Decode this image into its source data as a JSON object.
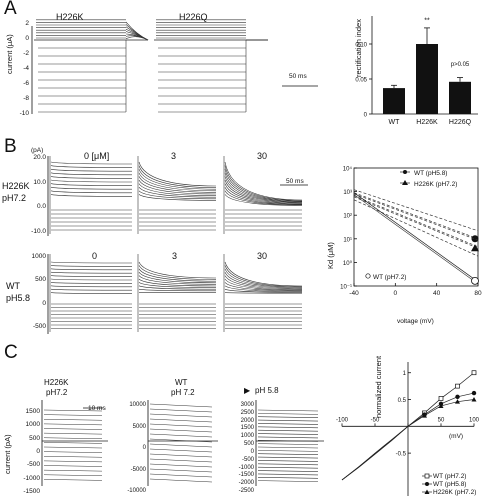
{
  "panel_a": {
    "letter": "A",
    "trace_titles": [
      "H226K",
      "H226Q"
    ],
    "yaxis_label": "current (μA)",
    "yticks": [
      "2",
      "0",
      "-2",
      "-4",
      "-6",
      "-8",
      "-10"
    ],
    "scalebar": "50 ms",
    "bar_chart": {
      "ylabel": "rectification index",
      "yticks": [
        "0.10",
        "0.05",
        "0"
      ],
      "sig_marks": [
        "**",
        "p>0.05"
      ]
    }
  },
  "panel_b": {
    "letter": "B",
    "unit": "(pA)",
    "row1_label": [
      "H226K",
      "pH7.2"
    ],
    "row2_label": [
      "WT",
      "pH5.8"
    ],
    "row1_conc": [
      "0 [μM]",
      "3",
      "30"
    ],
    "row2_conc": [
      "0",
      "3",
      "30"
    ],
    "row1_yticks": [
      "20.0",
      "10.0",
      "0.0",
      "-10.0"
    ],
    "row2_yticks": [
      "1000",
      "500",
      "0",
      "-500"
    ],
    "scalebar": "50 ms",
    "kd_plot": {
      "ylabel": "Kd (μM)",
      "xlabel": "voltage (mV)",
      "yticks": [
        "10⁴",
        "10³",
        "10²",
        "10¹",
        "10⁰",
        "10⁻¹"
      ],
      "xticks": [
        "-40",
        "0",
        "40",
        "80"
      ],
      "legend": [
        "WT (pH5.8)",
        "H226K (pH7.2)",
        "WT (pH7.2)"
      ]
    }
  },
  "panel_c": {
    "letter": "C",
    "col_labels": [
      [
        "H226K",
        "pH7.2"
      ],
      [
        "WT",
        "pH 7.2"
      ],
      [
        "pH 5.8"
      ]
    ],
    "scalebar": "10 ms",
    "yaxis_label": "current (pA)",
    "col1_yticks": [
      "1500",
      "1000",
      "500",
      "0",
      "-500",
      "-1000",
      "-1500"
    ],
    "col2_yticks": [
      "10000",
      "5000",
      "0",
      "-5000",
      "-10000"
    ],
    "col3_yticks": [
      "3000",
      "2500",
      "2000",
      "1500",
      "1000",
      "500",
      "0",
      "-500",
      "-1000",
      "-1500",
      "-2000",
      "-2500"
    ],
    "iv_plot": {
      "ylabel": "normalized current",
      "xlabel": "(mV)",
      "yticks": [
        "1",
        "0.5",
        "0",
        "-0.5"
      ],
      "xticks": [
        "-100",
        "-50",
        "0",
        "50",
        "100"
      ],
      "legend": [
        "WT (pH7.2)",
        "WT (pH5.8)",
        "H226K (pH7.2)"
      ]
    }
  },
  "chart_data": [
    {
      "type": "bar",
      "ylabel": "rectification index",
      "categories": [
        "WT",
        "H226K",
        "H226Q"
      ],
      "values": [
        0.037,
        0.1,
        0.046
      ],
      "errors": [
        0.004,
        0.023,
        0.006
      ],
      "ylim": [
        0,
        0.14
      ],
      "annotations": [
        "**",
        "p>0.05"
      ]
    },
    {
      "type": "line",
      "ylabel": "Kd (μM)",
      "xlabel": "voltage (mV)",
      "yscale": "log",
      "ylim": [
        0.1,
        10000
      ],
      "xlim": [
        -40,
        80
      ],
      "series": [
        {
          "name": "WT (pH5.8)",
          "x": [
            -40,
            80
          ],
          "y": [
            900,
            10
          ]
        },
        {
          "name": "H226K (pH7.2)",
          "x": [
            -40,
            80
          ],
          "y": [
            600,
            4
          ]
        },
        {
          "name": "WT (pH7.2)",
          "x": [
            -40,
            80
          ],
          "y": [
            900,
            0.15
          ]
        }
      ]
    },
    {
      "type": "line",
      "ylabel": "normalized current",
      "xlabel": "(mV)",
      "xlim": [
        -100,
        100
      ],
      "ylim": [
        -1.3,
        1.2
      ],
      "series": [
        {
          "name": "WT (pH7.2)",
          "x": [
            -100,
            -75,
            -50,
            -25,
            0,
            25,
            50,
            75,
            100
          ],
          "y": [
            -1.0,
            -0.77,
            -0.52,
            -0.27,
            0,
            0.25,
            0.52,
            0.75,
            1.0
          ]
        },
        {
          "name": "WT (pH5.8)",
          "x": [
            -100,
            -75,
            -50,
            -25,
            0,
            25,
            50,
            75,
            100
          ],
          "y": [
            -1.0,
            -0.76,
            -0.5,
            -0.25,
            0,
            0.22,
            0.42,
            0.55,
            0.62
          ]
        },
        {
          "name": "H226K (pH7.2)",
          "x": [
            -100,
            -75,
            -50,
            -25,
            0,
            25,
            50,
            75,
            100
          ],
          "y": [
            -1.0,
            -0.76,
            -0.51,
            -0.26,
            0,
            0.2,
            0.38,
            0.46,
            0.5
          ]
        }
      ]
    }
  ]
}
